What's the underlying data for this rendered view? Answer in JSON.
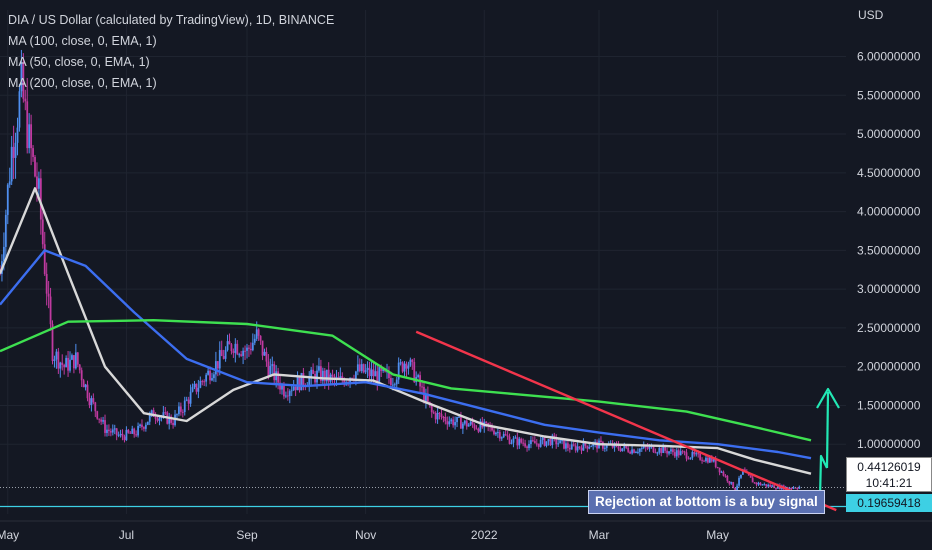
{
  "legend": {
    "title": "DIA / US Dollar (calculated by TradingView), 1D, BINANCE",
    "ma100": "MA (100, close, 0, EMA, 1)",
    "ma50": "MA (50, close, 0, EMA, 1)",
    "ma200": "MA (200, close, 0, EMA, 1)"
  },
  "axis": {
    "currency": "USD"
  },
  "badges": {
    "current_price": "0.44126019",
    "countdown": "10:41:21",
    "support_price": "0.19659418"
  },
  "annotation": {
    "text": "Rejection at bottom is a buy signal"
  },
  "colors": {
    "background": "#141823",
    "grid": "#1f2430",
    "candle_up": "#4f8ff0",
    "candle_down": "#c03aa0",
    "ma50": "#d8d8d8",
    "ma100": "#3c6ef0",
    "ma200": "#3ee050",
    "trendline": "#f2354b",
    "support_line": "#3dd0e4",
    "arrow": "#22e8b4"
  },
  "chart_data": {
    "type": "line",
    "title": "DIA / US Dollar (calculated by TradingView), 1D, BINANCE",
    "xlabel": "",
    "ylabel": "USD",
    "ylim": [
      0.1,
      6.6
    ],
    "y_ticks": [
      "6.00000000",
      "5.50000000",
      "5.00000000",
      "4.50000000",
      "4.00000000",
      "3.50000000",
      "3.00000000",
      "2.50000000",
      "2.00000000",
      "1.50000000",
      "1.00000000"
    ],
    "y_tick_values": [
      6.0,
      5.5,
      5.0,
      4.5,
      4.0,
      3.5,
      3.0,
      2.5,
      2.0,
      1.5,
      1.0
    ],
    "x_ticks": [
      "May",
      "Jul",
      "Sep",
      "Nov",
      "2022",
      "Mar",
      "May"
    ],
    "x_tick_dates": [
      "2021-05-01",
      "2021-07-01",
      "2021-09-01",
      "2021-11-01",
      "2022-01-01",
      "2022-03-01",
      "2022-05-01"
    ],
    "x_range": [
      "2021-04-27",
      "2022-07-06"
    ],
    "price_series": {
      "name": "DIA / US Dollar",
      "x": [
        "2021-04-27",
        "2021-05-03",
        "2021-05-08",
        "2021-05-12",
        "2021-05-17",
        "2021-05-20",
        "2021-05-24",
        "2021-05-30",
        "2021-06-05",
        "2021-06-12",
        "2021-06-20",
        "2021-06-28",
        "2021-07-06",
        "2021-07-15",
        "2021-07-25",
        "2021-08-05",
        "2021-08-15",
        "2021-08-25",
        "2021-09-01",
        "2021-09-06",
        "2021-09-12",
        "2021-09-20",
        "2021-09-28",
        "2021-10-08",
        "2021-10-18",
        "2021-10-28",
        "2021-11-05",
        "2021-11-15",
        "2021-11-22",
        "2021-11-28",
        "2021-12-05",
        "2021-12-15",
        "2021-12-25",
        "2022-01-05",
        "2022-01-15",
        "2022-01-25",
        "2022-02-05",
        "2022-02-15",
        "2022-02-25",
        "2022-03-08",
        "2022-03-18",
        "2022-03-28",
        "2022-04-08",
        "2022-04-18",
        "2022-04-28",
        "2022-05-06",
        "2022-05-10",
        "2022-05-14",
        "2022-05-20",
        "2022-05-28",
        "2022-06-05",
        "2022-06-12"
      ],
      "y": [
        3.2,
        4.8,
        5.6,
        4.9,
        4.2,
        3.3,
        2.2,
        2.0,
        2.1,
        1.6,
        1.2,
        1.1,
        1.15,
        1.4,
        1.3,
        1.7,
        2.0,
        2.3,
        2.2,
        2.4,
        2.0,
        1.7,
        1.8,
        1.9,
        1.8,
        1.95,
        1.9,
        1.85,
        2.1,
        1.8,
        1.4,
        1.3,
        1.25,
        1.2,
        1.05,
        1.0,
        1.05,
        0.95,
        1.0,
        0.97,
        0.93,
        0.95,
        0.9,
        0.85,
        0.8,
        0.55,
        0.42,
        0.65,
        0.5,
        0.46,
        0.44,
        0.45
      ]
    },
    "series": [
      {
        "name": "MA (50, close, 0, EMA, 1)",
        "x": [
          "2021-04-27",
          "2021-05-15",
          "2021-06-01",
          "2021-06-20",
          "2021-07-10",
          "2021-08-01",
          "2021-08-25",
          "2021-09-15",
          "2021-10-10",
          "2021-11-05",
          "2021-12-01",
          "2022-01-01",
          "2022-02-01",
          "2022-03-01",
          "2022-04-01",
          "2022-05-01",
          "2022-05-20",
          "2022-06-18"
        ],
        "y": [
          3.2,
          4.3,
          3.2,
          2.0,
          1.4,
          1.3,
          1.7,
          1.9,
          1.85,
          1.82,
          1.55,
          1.25,
          1.1,
          1.0,
          0.98,
          0.95,
          0.8,
          0.62
        ]
      },
      {
        "name": "MA (100, close, 0, EMA, 1)",
        "x": [
          "2021-04-27",
          "2021-05-20",
          "2021-06-10",
          "2021-07-05",
          "2021-08-01",
          "2021-09-01",
          "2021-10-01",
          "2021-11-01",
          "2021-12-01",
          "2022-01-01",
          "2022-02-01",
          "2022-03-01",
          "2022-04-01",
          "2022-05-01",
          "2022-06-01",
          "2022-06-18"
        ],
        "y": [
          2.8,
          3.5,
          3.3,
          2.7,
          2.1,
          1.8,
          1.75,
          1.8,
          1.65,
          1.45,
          1.25,
          1.15,
          1.05,
          1.0,
          0.9,
          0.82
        ]
      },
      {
        "name": "MA (200, close, 0, EMA, 1)",
        "x": [
          "2021-04-27",
          "2021-06-01",
          "2021-07-15",
          "2021-09-01",
          "2021-10-15",
          "2021-11-15",
          "2021-12-15",
          "2022-01-15",
          "2022-03-01",
          "2022-04-15",
          "2022-05-15",
          "2022-06-18"
        ],
        "y": [
          2.2,
          2.58,
          2.6,
          2.55,
          2.4,
          1.9,
          1.72,
          1.65,
          1.55,
          1.42,
          1.25,
          1.05
        ]
      }
    ],
    "trendline": {
      "x": [
        "2021-11-27",
        "2022-07-01"
      ],
      "y": [
        2.45,
        0.15
      ]
    },
    "support_level": 0.19659418,
    "current_price": 0.44126019
  }
}
